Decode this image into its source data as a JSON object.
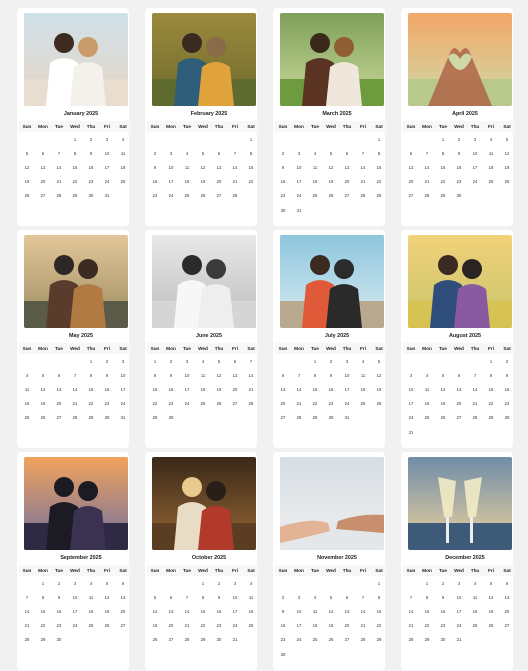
{
  "weekdays": [
    "Sun",
    "Mon",
    "Tue",
    "Wed",
    "Thu",
    "Fri",
    "Sat"
  ],
  "months": [
    {
      "name": "January 2025",
      "start": 3,
      "days": 31,
      "photo": "couple-beach-piggyback"
    },
    {
      "name": "February 2025",
      "start": 6,
      "days": 28,
      "photo": "couple-laughing-garden"
    },
    {
      "name": "March 2025",
      "start": 6,
      "days": 31,
      "photo": "couple-piggyback-park"
    },
    {
      "name": "April 2025",
      "start": 2,
      "days": 30,
      "photo": "hands-heart-sunset"
    },
    {
      "name": "May 2025",
      "start": 4,
      "days": 31,
      "photo": "couple-embrace-foggy-road"
    },
    {
      "name": "June 2025",
      "start": 0,
      "days": 30,
      "photo": "couple-black-white-portrait"
    },
    {
      "name": "July 2025",
      "start": 2,
      "days": 31,
      "photo": "couple-leaping-hug"
    },
    {
      "name": "August 2025",
      "start": 5,
      "days": 31,
      "photo": "couple-sitting-grass-field"
    },
    {
      "name": "September 2025",
      "start": 1,
      "days": 30,
      "photo": "couple-silhouette-sunset-pier"
    },
    {
      "name": "October 2025",
      "start": 3,
      "days": 31,
      "photo": "couple-cafe-smiling"
    },
    {
      "name": "November 2025",
      "start": 6,
      "days": 30,
      "photo": "hands-pinky-promise"
    },
    {
      "name": "December 2025",
      "start": 1,
      "days": 31,
      "photo": "champagne-toast-beach"
    }
  ]
}
